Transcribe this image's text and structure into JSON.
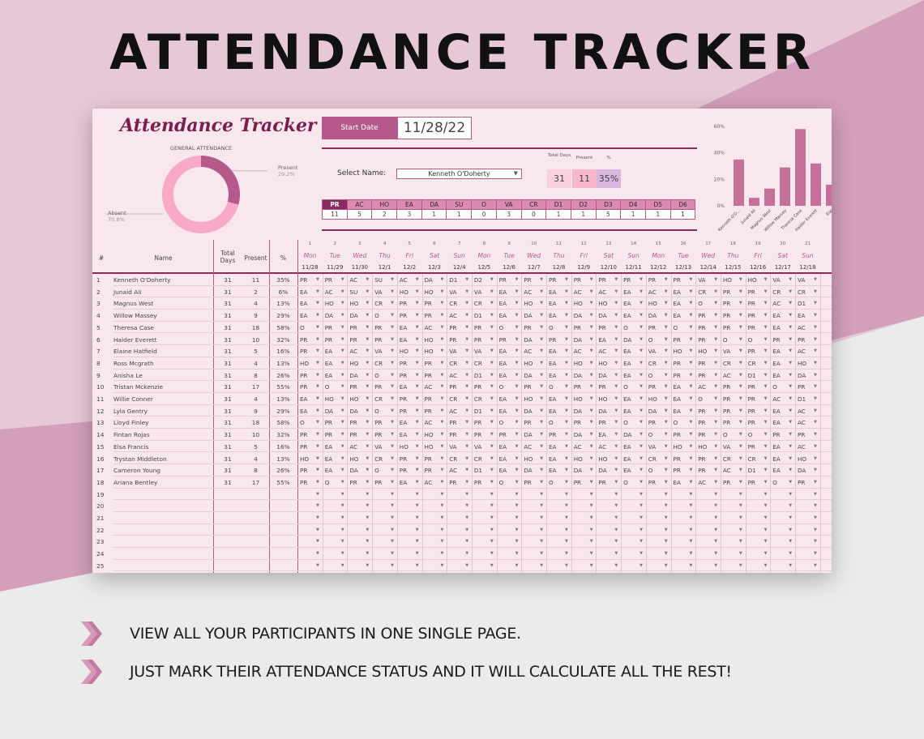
{
  "banner": {
    "title": "ATTENDANCE TRACKER",
    "bullets": [
      "VIEW ALL YOUR PARTICIPANTS IN ONE SINGLE PAGE.",
      "JUST MARK THEIR ATTENDANCE STATUS AND IT WILL CALCULATE ALL THE REST!"
    ]
  },
  "colors": {
    "accent": "#8b2a5e",
    "accent_mid": "#b5598a",
    "accent_light": "#d98bb2",
    "panel": "#f8e8ee",
    "bg_pink": "#e9cbd8"
  },
  "tracker": {
    "title": "Attendance Tracker",
    "start_date_label": "Start Date",
    "start_date": "11/28/22",
    "select_name_label": "Select Name:",
    "selected_name": "Kenneth O'Doherty",
    "stats_headers": [
      "Total Days",
      "Present",
      "%"
    ],
    "stats_values": [
      "31",
      "11",
      "35%"
    ],
    "general_attendance": {
      "title": "GENERAL ATTENDANCE",
      "present_label": "Present",
      "present_value": "29.2%",
      "absent_label": "Absent",
      "absent_value": "70.8%",
      "present_fraction": 0.292
    },
    "codes": [
      "PR",
      "AC",
      "HO",
      "EA",
      "DA",
      "SU",
      "O",
      "VA",
      "CR",
      "D1",
      "D2",
      "D3",
      "D4",
      "D5",
      "D6"
    ],
    "code_counts": [
      "11",
      "5",
      "2",
      "3",
      "1",
      "1",
      "0",
      "3",
      "0",
      "1",
      "1",
      "5",
      "1",
      "1",
      "1"
    ],
    "bar_chart": {
      "y_ticks": [
        "60%",
        "40%",
        "20%",
        "0%"
      ],
      "ylim": [
        0,
        0.6
      ],
      "categories": [
        "Kenneth O'D...",
        "Junaid Ali",
        "Magnus West",
        "Willow Massey",
        "Theresa Case",
        "Haider Everett",
        "Elai"
      ],
      "values": [
        0.35,
        0.06,
        0.13,
        0.29,
        0.58,
        0.32,
        0.16
      ]
    },
    "columns": {
      "no": "#",
      "name": "Name",
      "total_days": "Total Days",
      "present": "Present",
      "pct": "%"
    },
    "days": {
      "numbers": [
        "1",
        "2",
        "3",
        "4",
        "5",
        "6",
        "7",
        "8",
        "9",
        "10",
        "11",
        "12",
        "13",
        "14",
        "15",
        "16",
        "17",
        "18",
        "19",
        "20",
        "21"
      ],
      "names": [
        "Mon",
        "Tue",
        "Wed",
        "Thu",
        "Fri",
        "Sat",
        "Sun",
        "Mon",
        "Tue",
        "Wed",
        "Thu",
        "Fri",
        "Sat",
        "Sun",
        "Mon",
        "Tue",
        "Wed",
        "Thu",
        "Fri",
        "Sat",
        "Sun"
      ],
      "dates": [
        "11/28",
        "11/29",
        "11/30",
        "12/1",
        "12/2",
        "12/3",
        "12/4",
        "12/5",
        "12/6",
        "12/7",
        "12/8",
        "12/9",
        "12/10",
        "12/11",
        "12/12",
        "12/13",
        "12/14",
        "12/15",
        "12/16",
        "12/17",
        "12/18"
      ]
    },
    "participants": [
      {
        "no": "1",
        "name": "Kenneth O'Doherty",
        "total": "31",
        "present": "11",
        "pct": "35%",
        "marks": [
          "PR",
          "PR",
          "AC",
          "SU",
          "AC",
          "DA",
          "D1",
          "D2",
          "PR",
          "PR",
          "PR",
          "PR",
          "PR",
          "PR",
          "PR",
          "PR",
          "VA",
          "HO",
          "HO",
          "VA",
          "VA"
        ]
      },
      {
        "no": "2",
        "name": "Junaid Ali",
        "total": "31",
        "present": "2",
        "pct": "6%",
        "marks": [
          "EA",
          "AC",
          "SU",
          "VA",
          "HO",
          "HO",
          "VA",
          "VA",
          "EA",
          "AC",
          "EA",
          "AC",
          "AC",
          "EA",
          "AC",
          "EA",
          "CR",
          "PR",
          "PR",
          "CR",
          "CR"
        ]
      },
      {
        "no": "3",
        "name": "Magnus West",
        "total": "31",
        "present": "4",
        "pct": "13%",
        "marks": [
          "EA",
          "HO",
          "HO",
          "CR",
          "PR",
          "PR",
          "CR",
          "CR",
          "EA",
          "HO",
          "EA",
          "HO",
          "HO",
          "EA",
          "HO",
          "EA",
          "O",
          "PR",
          "PR",
          "AC",
          "D1"
        ]
      },
      {
        "no": "4",
        "name": "Willow Massey",
        "total": "31",
        "present": "9",
        "pct": "29%",
        "marks": [
          "EA",
          "DA",
          "DA",
          "O",
          "PR",
          "PR",
          "AC",
          "D1",
          "EA",
          "DA",
          "EA",
          "DA",
          "DA",
          "EA",
          "DA",
          "EA",
          "PR",
          "PR",
          "PR",
          "EA",
          "EA"
        ]
      },
      {
        "no": "5",
        "name": "Theresa Case",
        "total": "31",
        "present": "18",
        "pct": "58%",
        "marks": [
          "O",
          "PR",
          "PR",
          "PR",
          "EA",
          "AC",
          "PR",
          "PR",
          "O",
          "PR",
          "O",
          "PR",
          "PR",
          "O",
          "PR",
          "O",
          "PR",
          "PR",
          "PR",
          "EA",
          "AC"
        ]
      },
      {
        "no": "6",
        "name": "Haider Everett",
        "total": "31",
        "present": "10",
        "pct": "32%",
        "marks": [
          "PR",
          "PR",
          "PR",
          "PR",
          "EA",
          "HO",
          "PR",
          "PR",
          "PR",
          "DA",
          "PR",
          "DA",
          "EA",
          "DA",
          "O",
          "PR",
          "PR",
          "O",
          "O",
          "PR",
          "PR"
        ]
      },
      {
        "no": "7",
        "name": "Elaine Hatfield",
        "total": "31",
        "present": "5",
        "pct": "16%",
        "marks": [
          "PR",
          "EA",
          "AC",
          "VA",
          "HO",
          "HO",
          "VA",
          "VA",
          "EA",
          "AC",
          "EA",
          "AC",
          "AC",
          "EA",
          "VA",
          "HO",
          "HO",
          "VA",
          "PR",
          "EA",
          "AC"
        ]
      },
      {
        "no": "8",
        "name": "Ross Mcgrath",
        "total": "31",
        "present": "4",
        "pct": "13%",
        "marks": [
          "HO",
          "EA",
          "HO",
          "CR",
          "PR",
          "PR",
          "CR",
          "CR",
          "EA",
          "HO",
          "EA",
          "HO",
          "HO",
          "EA",
          "CR",
          "PR",
          "PR",
          "CR",
          "CR",
          "EA",
          "HO"
        ]
      },
      {
        "no": "9",
        "name": "Anisha Le",
        "total": "31",
        "present": "8",
        "pct": "26%",
        "marks": [
          "PR",
          "EA",
          "DA",
          "O",
          "PR",
          "PR",
          "AC",
          "D1",
          "EA",
          "DA",
          "EA",
          "DA",
          "DA",
          "EA",
          "O",
          "PR",
          "PR",
          "AC",
          "D1",
          "EA",
          "DA"
        ]
      },
      {
        "no": "10",
        "name": "Tristan Mckenzie",
        "total": "31",
        "present": "17",
        "pct": "55%",
        "marks": [
          "PR",
          "O",
          "PR",
          "PR",
          "EA",
          "AC",
          "PR",
          "PR",
          "O",
          "PR",
          "O",
          "PR",
          "PR",
          "O",
          "PR",
          "EA",
          "AC",
          "PR",
          "PR",
          "O",
          "PR"
        ]
      },
      {
        "no": "11",
        "name": "Willie Conner",
        "total": "31",
        "present": "4",
        "pct": "13%",
        "marks": [
          "EA",
          "HO",
          "HO",
          "CR",
          "PR",
          "PR",
          "CR",
          "CR",
          "EA",
          "HO",
          "EA",
          "HO",
          "HO",
          "EA",
          "HO",
          "EA",
          "O",
          "PR",
          "PR",
          "AC",
          "D1"
        ]
      },
      {
        "no": "12",
        "name": "Lyla Gentry",
        "total": "31",
        "present": "9",
        "pct": "29%",
        "marks": [
          "EA",
          "DA",
          "DA",
          "O",
          "PR",
          "PR",
          "AC",
          "D1",
          "EA",
          "DA",
          "EA",
          "DA",
          "DA",
          "EA",
          "DA",
          "EA",
          "PR",
          "PR",
          "PR",
          "EA",
          "AC"
        ]
      },
      {
        "no": "13",
        "name": "Lloyd Finley",
        "total": "31",
        "present": "18",
        "pct": "58%",
        "marks": [
          "O",
          "PR",
          "PR",
          "PR",
          "EA",
          "AC",
          "PR",
          "PR",
          "O",
          "PR",
          "O",
          "PR",
          "PR",
          "O",
          "PR",
          "O",
          "PR",
          "PR",
          "PR",
          "EA",
          "AC"
        ]
      },
      {
        "no": "14",
        "name": "Fintan Rojas",
        "total": "31",
        "present": "10",
        "pct": "32%",
        "marks": [
          "PR",
          "PR",
          "PR",
          "PR",
          "EA",
          "HO",
          "PR",
          "PR",
          "PR",
          "DA",
          "PR",
          "DA",
          "EA",
          "DA",
          "O",
          "PR",
          "PR",
          "O",
          "O",
          "PR",
          "PR"
        ]
      },
      {
        "no": "15",
        "name": "Elsa Francis",
        "total": "31",
        "present": "5",
        "pct": "16%",
        "marks": [
          "PR",
          "EA",
          "AC",
          "VA",
          "HO",
          "HO",
          "VA",
          "VA",
          "EA",
          "AC",
          "EA",
          "AC",
          "AC",
          "EA",
          "VA",
          "HO",
          "HO",
          "VA",
          "PR",
          "EA",
          "AC"
        ]
      },
      {
        "no": "16",
        "name": "Trystan Middleton",
        "total": "31",
        "present": "4",
        "pct": "13%",
        "marks": [
          "HO",
          "EA",
          "HO",
          "CR",
          "PR",
          "PR",
          "CR",
          "CR",
          "EA",
          "HO",
          "EA",
          "HO",
          "HO",
          "EA",
          "CR",
          "PR",
          "PR",
          "CR",
          "CR",
          "EA",
          "HO"
        ]
      },
      {
        "no": "17",
        "name": "Cameron Young",
        "total": "31",
        "present": "8",
        "pct": "26%",
        "marks": [
          "PR",
          "EA",
          "DA",
          "O",
          "PR",
          "PR",
          "AC",
          "D1",
          "EA",
          "DA",
          "EA",
          "DA",
          "DA",
          "EA",
          "O",
          "PR",
          "PR",
          "AC",
          "D1",
          "EA",
          "DA"
        ]
      },
      {
        "no": "18",
        "name": "Ariana Bentley",
        "total": "31",
        "present": "17",
        "pct": "55%",
        "marks": [
          "PR",
          "O",
          "PR",
          "PR",
          "EA",
          "AC",
          "PR",
          "PR",
          "O",
          "PR",
          "O",
          "PR",
          "PR",
          "O",
          "PR",
          "EA",
          "AC",
          "PR",
          "PR",
          "O",
          "PR"
        ]
      }
    ],
    "empty_row_numbers": [
      "19",
      "20",
      "21",
      "22",
      "23",
      "24",
      "25"
    ]
  }
}
